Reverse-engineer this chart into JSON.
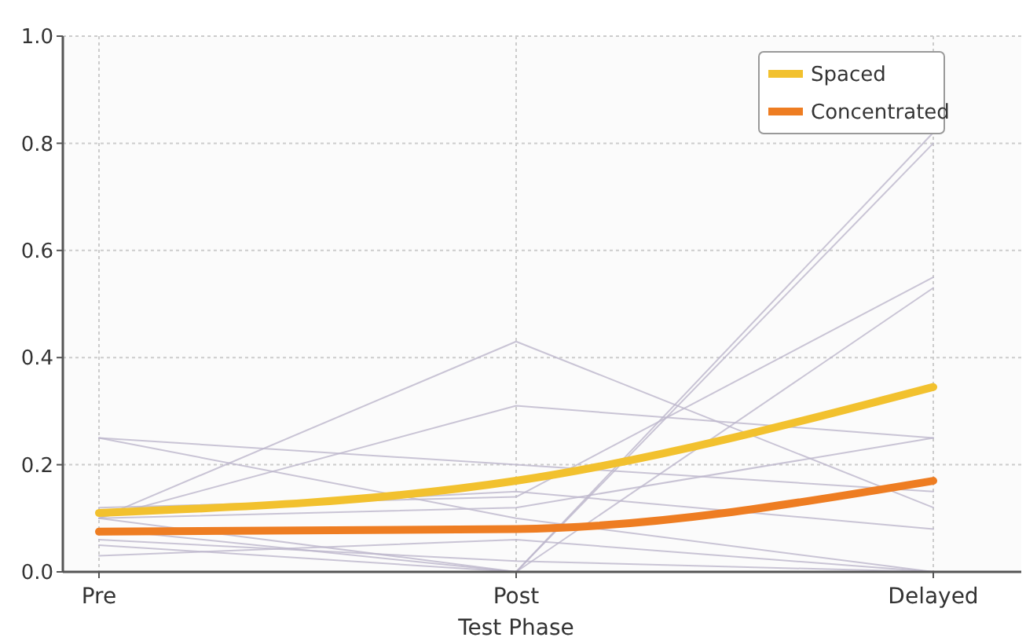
{
  "chart_data": {
    "type": "line",
    "xlabel": "Test Phase",
    "categories": [
      "Pre",
      "Post",
      "Delayed"
    ],
    "ylim": [
      0,
      1
    ],
    "yticks": [
      {
        "value": 0,
        "label": "0.0"
      },
      0.2,
      0.4,
      0.6,
      0.8,
      {
        "value": 1,
        "label": "1.0"
      }
    ],
    "grid": true,
    "legend": "top right",
    "series": [
      {
        "color": "#bdb6cc",
        "values": [
          0.1,
          0.43,
          0.12
        ]
      },
      {
        "color": "#bdb6cc",
        "values": [
          0.1,
          0.31,
          0.25
        ]
      },
      {
        "color": "#bdb6cc",
        "values": [
          0.25,
          0.2,
          0.15
        ]
      },
      {
        "color": "#bdb6cc",
        "values": [
          0.25,
          0.1,
          0.0
        ]
      },
      {
        "color": "#bdb6cc",
        "values": [
          0.08,
          0.0,
          0.82
        ]
      },
      {
        "color": "#bdb6cc",
        "values": [
          0.05,
          0.0,
          0.8
        ]
      },
      {
        "color": "#bdb6cc",
        "values": [
          0.12,
          0.14,
          0.55
        ]
      },
      {
        "color": "#bdb6cc",
        "values": [
          0.1,
          0.12,
          0.25
        ]
      },
      {
        "color": "#bdb6cc",
        "values": [
          0.1,
          0.0,
          0.53
        ]
      },
      {
        "color": "#bdb6cc",
        "values": [
          0.03,
          0.06,
          0.0
        ]
      },
      {
        "color": "#bdb6cc",
        "values": [
          0.06,
          0.02,
          0.0
        ]
      },
      {
        "color": "#bdb6cc",
        "values": [
          0.11,
          0.15,
          0.08
        ]
      },
      {
        "name": "Spaced",
        "color": "#f2c12e",
        "values": [
          0.11,
          0.17,
          0.345
        ]
      },
      {
        "name": "Concentrated",
        "color": "#ee7d22",
        "values": [
          0.075,
          0.08,
          0.17
        ]
      }
    ]
  }
}
